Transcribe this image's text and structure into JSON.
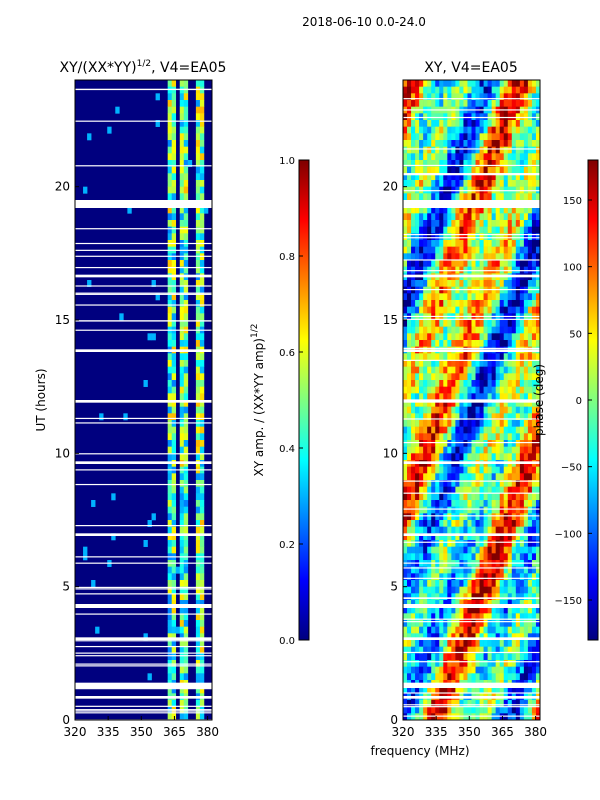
{
  "figure": {
    "suptitle": "2018-06-10 0.0-24.0",
    "xlabel_shared": "frequency (MHz)"
  },
  "chart_data": [
    {
      "type": "heatmap",
      "title": "XY/(XX*YY)",
      "title_exponent": "1/2",
      "title_suffix": ", V4=EA05",
      "xlabel": "",
      "ylabel": "UT (hours)",
      "xlim": [
        320,
        382
      ],
      "ylim": [
        0,
        24
      ],
      "xticks": [
        320,
        335,
        350,
        365,
        380
      ],
      "yticks": [
        0,
        5,
        10,
        15,
        20
      ],
      "colorbar": {
        "range": [
          0.0,
          1.0
        ],
        "ticks": [
          "0.0",
          "0.2",
          "0.4",
          "0.6",
          "0.8",
          "1.0"
        ],
        "label": "XY amp. / (XX*YY amp)",
        "label_exponent": "1/2",
        "colormap": "jet"
      },
      "bright_channels_mhz": [
        [
          362,
          366
        ],
        [
          368,
          371
        ],
        [
          374,
          378
        ]
      ],
      "flagged_time_ranges_hours": [
        [
          1.2,
          1.4
        ],
        [
          0.8,
          0.9
        ],
        [
          19.2,
          19.5
        ],
        [
          16.6,
          16.7
        ],
        [
          13.8,
          13.9
        ],
        [
          11.9,
          12.0
        ],
        [
          9.6,
          9.7
        ],
        [
          6.9,
          7.0
        ],
        [
          4.2,
          4.35
        ],
        [
          3.0,
          3.1
        ]
      ]
    },
    {
      "type": "heatmap",
      "title": "XY, V4=EA05",
      "xlabel": "",
      "ylabel": "",
      "xlim": [
        320,
        382
      ],
      "ylim": [
        0,
        24
      ],
      "xticks": [
        320,
        335,
        350,
        365,
        380
      ],
      "yticks": [
        0,
        5,
        10,
        15,
        20
      ],
      "colorbar": {
        "range": [
          -180,
          180
        ],
        "ticks": [
          "−150",
          "−100",
          "−50",
          "0",
          "50",
          "100",
          "150"
        ],
        "label": "phase (deg)",
        "colormap": "jet"
      },
      "flagged_time_ranges_hours": [
        [
          1.2,
          1.4
        ],
        [
          0.8,
          0.9
        ],
        [
          19.2,
          19.5
        ],
        [
          16.6,
          16.7
        ],
        [
          13.8,
          13.9
        ],
        [
          11.9,
          12.0
        ],
        [
          9.6,
          9.7
        ],
        [
          6.9,
          7.0
        ],
        [
          4.2,
          4.35
        ],
        [
          3.0,
          3.1
        ]
      ]
    }
  ],
  "colors": {
    "jet_dark_blue": "#00007f",
    "jet_blue": "#0000ff",
    "jet_cyan": "#00ffff",
    "jet_yellow": "#ffff00",
    "jet_red": "#ff0000",
    "jet_dark_red": "#7f0000",
    "gap": "#ffffff"
  }
}
